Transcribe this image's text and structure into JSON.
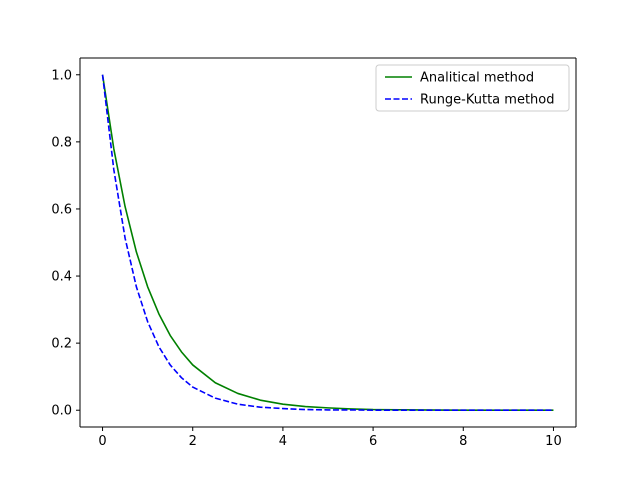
{
  "chart_data": {
    "type": "line",
    "title": "",
    "xlabel": "",
    "ylabel": "",
    "xlim": [
      -0.5,
      10.5
    ],
    "ylim": [
      -0.05,
      1.05
    ],
    "xticks": [
      0,
      2,
      4,
      6,
      8,
      10
    ],
    "yticks": [
      0.0,
      0.2,
      0.4,
      0.6,
      0.8,
      1.0
    ],
    "xtick_labels": [
      "0",
      "2",
      "4",
      "6",
      "8",
      "10"
    ],
    "ytick_labels": [
      "0.0",
      "0.2",
      "0.4",
      "0.6",
      "0.8",
      "1.0"
    ],
    "grid": false,
    "legend_position": "top-right",
    "series": [
      {
        "name": "Analitical method",
        "color": "#008000",
        "style": "solid",
        "x": [
          0,
          0.25,
          0.5,
          0.75,
          1,
          1.25,
          1.5,
          1.75,
          2,
          2.5,
          3,
          3.5,
          4,
          4.5,
          5,
          5.5,
          6,
          7,
          8,
          9,
          10
        ],
        "y": [
          1.0,
          0.779,
          0.607,
          0.472,
          0.368,
          0.287,
          0.223,
          0.174,
          0.135,
          0.082,
          0.05,
          0.03,
          0.018,
          0.011,
          0.007,
          0.004,
          0.002,
          0.001,
          0.0,
          0.0,
          0.0
        ]
      },
      {
        "name": "Runge-Kutta method",
        "color": "#0000ff",
        "style": "dashed",
        "x": [
          0,
          0.25,
          0.5,
          0.75,
          1,
          1.25,
          1.5,
          1.75,
          2,
          2.5,
          3,
          3.5,
          4,
          4.5,
          5,
          5.5,
          6,
          7,
          8,
          9,
          10
        ],
        "y": [
          1.0,
          0.717,
          0.513,
          0.368,
          0.264,
          0.189,
          0.135,
          0.097,
          0.069,
          0.036,
          0.018,
          0.009,
          0.005,
          0.002,
          0.001,
          0.001,
          0.0,
          0.0,
          0.0,
          0.0,
          0.0
        ]
      }
    ]
  }
}
